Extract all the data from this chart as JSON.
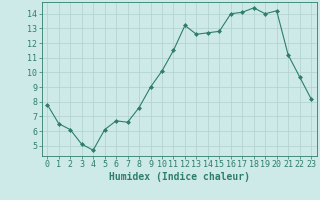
{
  "x": [
    0,
    1,
    2,
    3,
    4,
    5,
    6,
    7,
    8,
    9,
    10,
    11,
    12,
    13,
    14,
    15,
    16,
    17,
    18,
    19,
    20,
    21,
    22,
    23
  ],
  "y": [
    7.8,
    6.5,
    6.1,
    5.1,
    4.7,
    6.1,
    6.7,
    6.6,
    7.6,
    9.0,
    10.1,
    11.5,
    13.2,
    12.6,
    12.7,
    12.8,
    14.0,
    14.1,
    14.4,
    14.0,
    14.2,
    11.2,
    9.7,
    8.2
  ],
  "line_color": "#2e7d6e",
  "marker": "D",
  "marker_size": 2.0,
  "bg_color": "#ceeae8",
  "grid_color": "#b0d0ce",
  "xlabel": "Humidex (Indice chaleur)",
  "xlim": [
    -0.5,
    23.5
  ],
  "ylim": [
    4.3,
    14.8
  ],
  "yticks": [
    5,
    6,
    7,
    8,
    9,
    10,
    11,
    12,
    13,
    14
  ],
  "xticks": [
    0,
    1,
    2,
    3,
    4,
    5,
    6,
    7,
    8,
    9,
    10,
    11,
    12,
    13,
    14,
    15,
    16,
    17,
    18,
    19,
    20,
    21,
    22,
    23
  ],
  "tick_color": "#2e7d6e",
  "label_color": "#2e7d6e",
  "xlabel_fontsize": 7,
  "tick_fontsize": 6
}
